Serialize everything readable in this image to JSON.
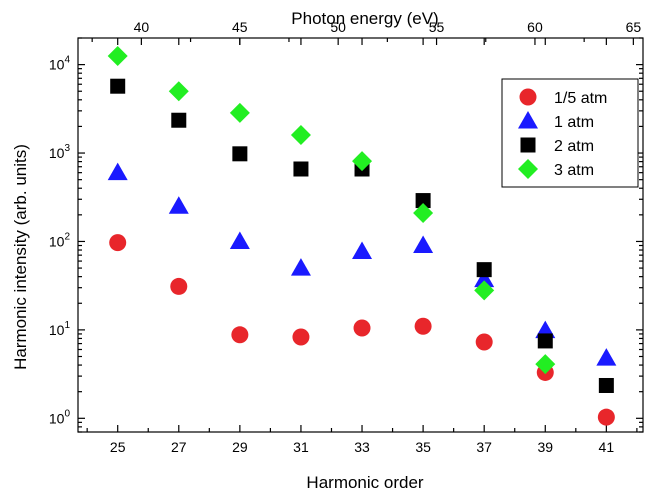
{
  "chart_data": {
    "type": "scatter",
    "title": "",
    "xlabel": "Harmonic order",
    "ylabel": "Harmonic intensity (arb. units)",
    "x2label": "Photon energy (eV)",
    "xlim": [
      23.7,
      42.2
    ],
    "ylim": [
      0.7,
      20000
    ],
    "yscale": "log",
    "x_ticks": [
      25,
      27,
      29,
      31,
      33,
      35,
      37,
      39,
      41
    ],
    "x_tick_labels": [
      "25",
      "27",
      "29",
      "31",
      "33",
      "35",
      "37",
      "39",
      "41"
    ],
    "x2_ticks": [
      40,
      45,
      50,
      55,
      60,
      65
    ],
    "x2_tick_labels": [
      "40",
      "45",
      "50",
      "55",
      "60",
      "65"
    ],
    "y_tick_exponents": [
      0,
      1,
      2,
      3,
      4
    ],
    "y_tick_base": "10",
    "legend_position": "top-right",
    "grid": false,
    "x": [
      25,
      27,
      29,
      31,
      33,
      35,
      37,
      39,
      41
    ],
    "series": [
      {
        "name": "1/5 atm",
        "marker": "circle",
        "color": "#e8262b",
        "values": [
          97,
          31,
          8.8,
          8.3,
          10.5,
          11,
          7.3,
          3.3,
          1.03
        ]
      },
      {
        "name": "1 atm",
        "marker": "triangle",
        "color": "#1a1aff",
        "values": [
          600,
          250,
          100,
          50,
          77,
          90,
          37,
          9.8,
          4.8
        ]
      },
      {
        "name": "2 atm",
        "marker": "square",
        "color": "#000000",
        "values": [
          5700,
          2350,
          980,
          660,
          660,
          290,
          48,
          7.5,
          2.35
        ]
      },
      {
        "name": "3 atm",
        "marker": "diamond",
        "color": "#22ee22",
        "values": [
          12500,
          5000,
          2850,
          1600,
          810,
          210,
          28,
          4.1,
          null
        ]
      }
    ]
  }
}
